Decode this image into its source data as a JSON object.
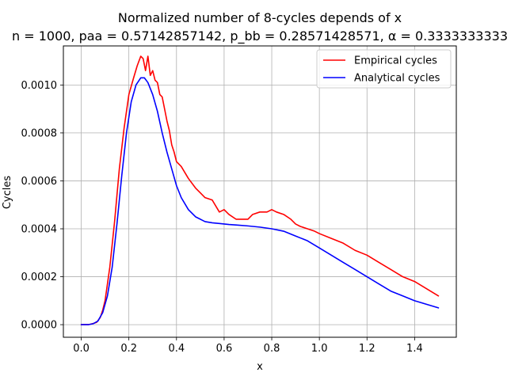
{
  "chart_data": {
    "type": "line",
    "title": "Normalized number of 8-cycles depends of x",
    "subtitle": "n = 1000, paa = 0.57142857142, p_bb = 0.28571428571, α = 0.3333333333",
    "xlabel": "x",
    "ylabel": "Cycles",
    "xlim": [
      -0.075,
      1.575
    ],
    "ylim": [
      -5.25e-05,
      0.001163
    ],
    "grid": true,
    "legend_position": "top-right",
    "x_ticks": [
      0.0,
      0.2,
      0.4,
      0.6,
      0.8,
      1.0,
      1.2,
      1.4
    ],
    "x_tick_labels": [
      "0.0",
      "0.2",
      "0.4",
      "0.6",
      "0.8",
      "1.0",
      "1.2",
      "1.4"
    ],
    "y_ticks": [
      0.0,
      0.0002,
      0.0004,
      0.0006,
      0.0008,
      0.001
    ],
    "y_tick_labels": [
      "0.0000",
      "0.0002",
      "0.0004",
      "0.0006",
      "0.0008",
      "0.0010"
    ],
    "series": [
      {
        "name": "Empirical cycles",
        "color": "#ff0000",
        "x": [
          0.0,
          0.03,
          0.05,
          0.065,
          0.08,
          0.09,
          0.1,
          0.12,
          0.14,
          0.16,
          0.18,
          0.2,
          0.22,
          0.235,
          0.25,
          0.26,
          0.27,
          0.28,
          0.29,
          0.3,
          0.31,
          0.32,
          0.33,
          0.34,
          0.35,
          0.36,
          0.37,
          0.38,
          0.39,
          0.4,
          0.42,
          0.45,
          0.48,
          0.5,
          0.52,
          0.55,
          0.58,
          0.6,
          0.62,
          0.65,
          0.68,
          0.7,
          0.72,
          0.75,
          0.78,
          0.8,
          0.82,
          0.85,
          0.88,
          0.9,
          0.92,
          0.95,
          0.98,
          1.0,
          1.05,
          1.1,
          1.15,
          1.2,
          1.25,
          1.3,
          1.35,
          1.4,
          1.45,
          1.5
        ],
        "y": [
          0.0,
          0.0,
          5e-06,
          1e-05,
          3e-05,
          6e-05,
          0.0001,
          0.00024,
          0.00043,
          0.00065,
          0.00082,
          0.00096,
          0.00103,
          0.00108,
          0.00112,
          0.00111,
          0.00106,
          0.00112,
          0.00104,
          0.00106,
          0.00102,
          0.00101,
          0.00096,
          0.00095,
          0.0009,
          0.00085,
          0.00081,
          0.00075,
          0.00072,
          0.00068,
          0.00066,
          0.00061,
          0.00057,
          0.00055,
          0.00053,
          0.00052,
          0.00047,
          0.00048,
          0.00046,
          0.00044,
          0.00044,
          0.00044,
          0.00046,
          0.00047,
          0.00047,
          0.00048,
          0.00047,
          0.00046,
          0.00044,
          0.00042,
          0.00041,
          0.0004,
          0.00039,
          0.00038,
          0.00036,
          0.00034,
          0.00031,
          0.00029,
          0.00026,
          0.00023,
          0.0002,
          0.00018,
          0.00015,
          0.00012
        ]
      },
      {
        "name": "Analytical cycles",
        "color": "#0000ff",
        "x": [
          0.0,
          0.03,
          0.05,
          0.07,
          0.09,
          0.11,
          0.13,
          0.15,
          0.17,
          0.19,
          0.21,
          0.23,
          0.25,
          0.265,
          0.28,
          0.3,
          0.32,
          0.34,
          0.36,
          0.38,
          0.4,
          0.42,
          0.45,
          0.48,
          0.5,
          0.52,
          0.55,
          0.58,
          0.6,
          0.62,
          0.65,
          0.7,
          0.75,
          0.8,
          0.85,
          0.9,
          0.95,
          1.0,
          1.05,
          1.1,
          1.15,
          1.2,
          1.25,
          1.3,
          1.35,
          1.4,
          1.45,
          1.5
        ],
        "y": [
          0.0,
          0.0,
          4e-06,
          1.5e-05,
          5e-05,
          0.00012,
          0.00024,
          0.00042,
          0.00062,
          0.0008,
          0.00093,
          0.001,
          0.00103,
          0.00103,
          0.00101,
          0.00096,
          0.00089,
          0.0008,
          0.00072,
          0.00065,
          0.00058,
          0.00053,
          0.00048,
          0.00045,
          0.00044,
          0.00043,
          0.000425,
          0.000422,
          0.00042,
          0.000418,
          0.000416,
          0.000412,
          0.000407,
          0.0004,
          0.00039,
          0.00037,
          0.00035,
          0.00032,
          0.00029,
          0.00026,
          0.00023,
          0.0002,
          0.00017,
          0.00014,
          0.00012,
          0.0001,
          8.5e-05,
          7e-05
        ]
      }
    ]
  }
}
